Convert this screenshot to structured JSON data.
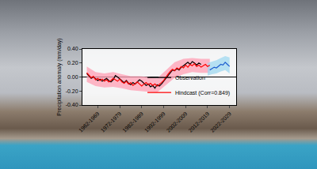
{
  "chart_data": {
    "type": "line",
    "y_label": "Precipitation anomaly (mm/day)",
    "xlim": [
      1955,
      2025
    ],
    "xticks": [
      {
        "value": 1962,
        "label": "1962-1969"
      },
      {
        "value": 1972,
        "label": "1972-1979"
      },
      {
        "value": 1982,
        "label": "1982-1989"
      },
      {
        "value": 1992,
        "label": "1992-1999"
      },
      {
        "value": 2002,
        "label": "2002-2009"
      },
      {
        "value": 2012,
        "label": "2012-2019"
      },
      {
        "value": 2022,
        "label": "2022-2029"
      }
    ],
    "ylim": [
      -0.4,
      0.4
    ],
    "yticks": [
      {
        "value": -0.4,
        "label": "-0.40"
      },
      {
        "value": -0.2,
        "label": "-0.20"
      },
      {
        "value": 0,
        "label": "0.00"
      },
      {
        "value": 0.2,
        "label": "0.20"
      },
      {
        "value": 0.4,
        "label": "0.40"
      }
    ],
    "grid": false,
    "legend": "lower right",
    "bands": [
      {
        "color": "#ff9fb4",
        "x": [
          1957,
          1961,
          1965,
          1969,
          1973,
          1977,
          1981,
          1985,
          1989,
          1993,
          1997,
          2001,
          2005,
          2009,
          2013
        ],
        "upper": [
          0.15,
          0.07,
          0.05,
          0.07,
          0.04,
          0.01,
          0.01,
          0.0,
          -0.02,
          0.1,
          0.21,
          0.26,
          0.27,
          0.26,
          0.26
        ],
        "lower": [
          -0.07,
          -0.13,
          -0.15,
          -0.14,
          -0.16,
          -0.19,
          -0.2,
          -0.21,
          -0.22,
          -0.12,
          -0.01,
          0.04,
          0.07,
          0.06,
          0.06
        ]
      },
      {
        "color": "#9fd8f0",
        "x": [
          2012,
          2014,
          2016,
          2018,
          2020,
          2022
        ],
        "upper": [
          0.2,
          0.22,
          0.24,
          0.27,
          0.3,
          0.28
        ],
        "lower": [
          0.02,
          0.04,
          0.05,
          0.08,
          0.1,
          0.05
        ]
      }
    ],
    "series": [
      {
        "name": "Observation",
        "color": "#000000",
        "x": [
          1957,
          1958,
          1959,
          1960,
          1961,
          1962,
          1963,
          1964,
          1965,
          1966,
          1967,
          1968,
          1969,
          1970,
          1971,
          1972,
          1973,
          1974,
          1975,
          1976,
          1977,
          1978,
          1979,
          1980,
          1981,
          1982,
          1983,
          1984,
          1985,
          1986,
          1987,
          1988,
          1989,
          1990,
          1991,
          1992,
          1993,
          1994,
          1995,
          1996,
          1997,
          1998,
          1999,
          2000,
          2001,
          2002,
          2003,
          2004,
          2005,
          2006,
          2007,
          2008,
          2009
        ],
        "values": [
          0.05,
          0.02,
          -0.02,
          0.0,
          -0.03,
          -0.05,
          -0.03,
          -0.06,
          -0.04,
          -0.02,
          -0.05,
          -0.07,
          -0.04,
          0.02,
          0.0,
          -0.03,
          -0.06,
          -0.08,
          -0.05,
          -0.09,
          -0.11,
          -0.08,
          -0.1,
          -0.07,
          -0.04,
          -0.06,
          -0.09,
          -0.12,
          -0.1,
          -0.14,
          -0.12,
          -0.16,
          -0.11,
          -0.13,
          -0.1,
          -0.06,
          -0.02,
          0.03,
          0.06,
          0.1,
          0.09,
          0.12,
          0.1,
          0.14,
          0.16,
          0.19,
          0.21,
          0.18,
          0.22,
          0.2,
          0.17,
          0.2,
          0.18
        ]
      },
      {
        "name": "Hindcast (Corr=0.849)",
        "color": "#ff0000",
        "x": [
          1957,
          1958,
          1959,
          1960,
          1961,
          1962,
          1963,
          1964,
          1965,
          1966,
          1967,
          1968,
          1969,
          1970,
          1971,
          1972,
          1973,
          1974,
          1975,
          1976,
          1977,
          1978,
          1979,
          1980,
          1981,
          1982,
          1983,
          1984,
          1985,
          1986,
          1987,
          1988,
          1989,
          1990,
          1991,
          1992,
          1993,
          1994,
          1995,
          1996,
          1997,
          1998,
          1999,
          2000,
          2001,
          2002,
          2003,
          2004,
          2005,
          2006,
          2007,
          2008,
          2009,
          2010,
          2011,
          2012,
          2013
        ],
        "values": [
          0.06,
          0.02,
          -0.01,
          0.01,
          -0.04,
          -0.02,
          -0.05,
          -0.03,
          -0.06,
          -0.04,
          -0.07,
          -0.05,
          -0.02,
          -0.04,
          -0.06,
          -0.03,
          -0.07,
          -0.09,
          -0.06,
          -0.1,
          -0.08,
          -0.12,
          -0.09,
          -0.07,
          -0.1,
          -0.13,
          -0.1,
          -0.08,
          -0.11,
          -0.09,
          -0.12,
          -0.1,
          -0.13,
          -0.11,
          -0.08,
          -0.05,
          0.0,
          0.04,
          0.08,
          0.11,
          0.09,
          0.13,
          0.11,
          0.15,
          0.13,
          0.17,
          0.14,
          0.18,
          0.16,
          0.19,
          0.15,
          0.17,
          0.14,
          0.16,
          0.18,
          0.15,
          0.17
        ]
      },
      {
        "color": "#1f5fd0",
        "x": [
          2013,
          2014,
          2015,
          2016,
          2017,
          2018,
          2019,
          2020,
          2021,
          2022
        ],
        "values": [
          0.1,
          0.12,
          0.14,
          0.13,
          0.16,
          0.18,
          0.17,
          0.21,
          0.18,
          0.15
        ]
      }
    ]
  }
}
